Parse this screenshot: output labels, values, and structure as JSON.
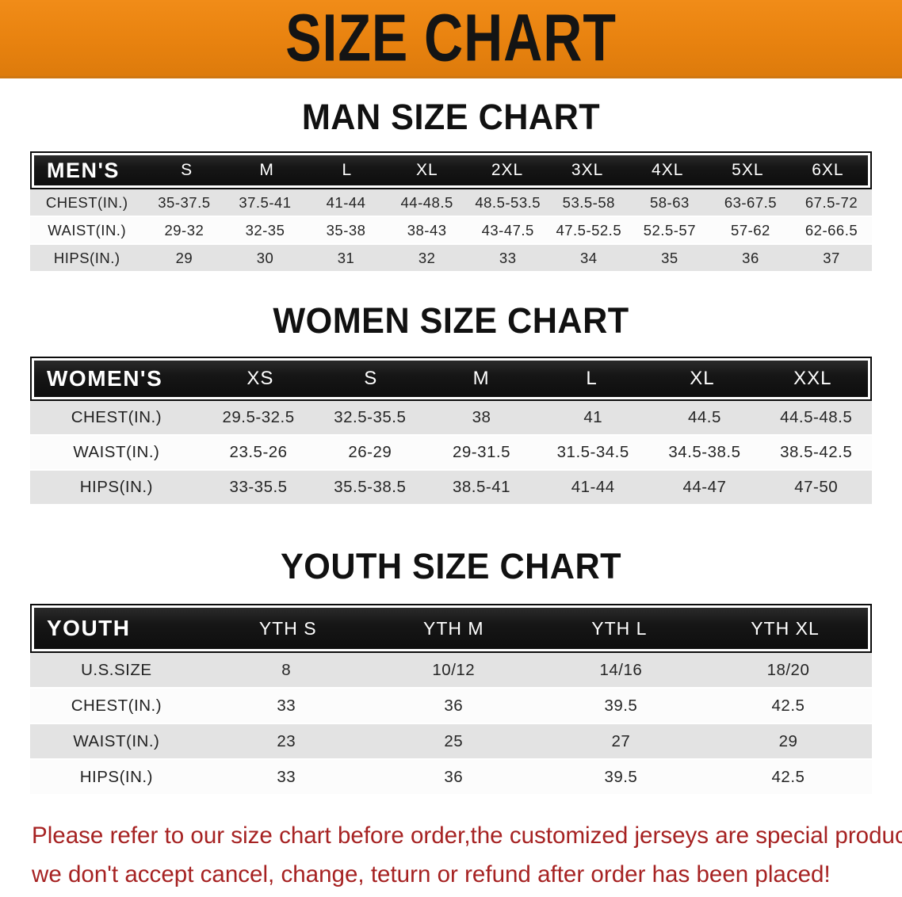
{
  "banner": {
    "title": "SIZE CHART"
  },
  "sections": [
    {
      "title": "MAN SIZE CHART",
      "header_label": "MEN'S",
      "columns": [
        "S",
        "M",
        "L",
        "XL",
        "2XL",
        "3XL",
        "4XL",
        "5XL",
        "6XL"
      ],
      "rows": [
        {
          "label": "CHEST(IN.)",
          "values": [
            "35-37.5",
            "37.5-41",
            "41-44",
            "44-48.5",
            "48.5-53.5",
            "53.5-58",
            "58-63",
            "63-67.5",
            "67.5-72"
          ]
        },
        {
          "label": "WAIST(IN.)",
          "values": [
            "29-32",
            "32-35",
            "35-38",
            "38-43",
            "43-47.5",
            "47.5-52.5",
            "52.5-57",
            "57-62",
            "62-66.5"
          ]
        },
        {
          "label": "HIPS(IN.)",
          "values": [
            "29",
            "30",
            "31",
            "32",
            "33",
            "34",
            "35",
            "36",
            "37"
          ]
        }
      ]
    },
    {
      "title": "WOMEN SIZE CHART",
      "header_label": "WOMEN'S",
      "columns": [
        "XS",
        "S",
        "M",
        "L",
        "XL",
        "XXL"
      ],
      "rows": [
        {
          "label": "CHEST(IN.)",
          "values": [
            "29.5-32.5",
            "32.5-35.5",
            "38",
            "41",
            "44.5",
            "44.5-48.5"
          ]
        },
        {
          "label": "WAIST(IN.)",
          "values": [
            "23.5-26",
            "26-29",
            "29-31.5",
            "31.5-34.5",
            "34.5-38.5",
            "38.5-42.5"
          ]
        },
        {
          "label": "HIPS(IN.)",
          "values": [
            "33-35.5",
            "35.5-38.5",
            "38.5-41",
            "41-44",
            "44-47",
            "47-50"
          ]
        }
      ]
    },
    {
      "title": "YOUTH SIZE CHART",
      "header_label": "YOUTH",
      "columns": [
        "YTH S",
        "YTH M",
        "YTH L",
        "YTH XL"
      ],
      "rows": [
        {
          "label": "U.S.SIZE",
          "values": [
            "8",
            "10/12",
            "14/16",
            "18/20"
          ]
        },
        {
          "label": "CHEST(IN.)",
          "values": [
            "33",
            "36",
            "39.5",
            "42.5"
          ]
        },
        {
          "label": "WAIST(IN.)",
          "values": [
            "23",
            "25",
            "27",
            "29"
          ]
        },
        {
          "label": "HIPS(IN.)",
          "values": [
            "33",
            "36",
            "39.5",
            "42.5"
          ]
        }
      ]
    }
  ],
  "footer": {
    "line1": "Please refer to our size chart before order,the customized jerseys are special products,",
    "line2": "we don't accept cancel, change, teturn or refund after order has been placed!"
  },
  "colors": {
    "banner_bg": "#e8820f",
    "header_bar": "#161616",
    "row_alt": "#e3e3e3",
    "row_plain": "#fcfcfc",
    "note_red": "#a62222"
  }
}
